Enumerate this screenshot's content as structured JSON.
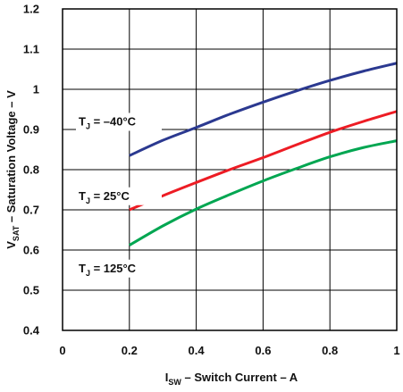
{
  "chart_data": {
    "type": "line",
    "title": "",
    "xlabel": {
      "main": "I",
      "sub": "SW",
      "rest": " – Switch Current – A"
    },
    "ylabel": {
      "main": "V",
      "sub": "SAT",
      "rest": " – Saturation Voltage – V"
    },
    "xlim": [
      0,
      1
    ],
    "ylim": [
      0.4,
      1.2
    ],
    "xticks": [
      0,
      0.2,
      0.4,
      0.6,
      0.8,
      1
    ],
    "xtick_labels": [
      "0",
      "0.2",
      "0.4",
      "0.6",
      "0.8",
      "1"
    ],
    "yticks": [
      0.4,
      0.5,
      0.6,
      0.7,
      0.8,
      0.9,
      1.0,
      1.1,
      1.2
    ],
    "ytick_labels": [
      "0.4",
      "0.5",
      "0.6",
      "0.7",
      "0.8",
      "0.9",
      "1",
      "1.1",
      "1.2"
    ],
    "grid": true,
    "series": [
      {
        "name": "TJ = –40°C",
        "color": "#2b3990",
        "x": [
          0.2,
          0.3,
          0.4,
          0.5,
          0.6,
          0.7,
          0.8,
          0.9,
          1.0
        ],
        "y": [
          0.835,
          0.873,
          0.905,
          0.938,
          0.968,
          0.996,
          1.022,
          1.045,
          1.065
        ]
      },
      {
        "name": "TJ = 25°C",
        "color": "#ed1c24",
        "x": [
          0.2,
          0.3,
          0.4,
          0.5,
          0.6,
          0.7,
          0.8,
          0.9,
          1.0
        ],
        "y": [
          0.7,
          0.735,
          0.768,
          0.8,
          0.83,
          0.862,
          0.893,
          0.92,
          0.945
        ]
      },
      {
        "name": "TJ = 125°C",
        "color": "#00a651",
        "x": [
          0.2,
          0.3,
          0.4,
          0.5,
          0.6,
          0.7,
          0.8,
          0.9,
          1.0
        ],
        "y": [
          0.612,
          0.66,
          0.702,
          0.738,
          0.772,
          0.803,
          0.832,
          0.855,
          0.872
        ]
      }
    ],
    "annotations": [
      {
        "series_index": 0,
        "prefix": "T",
        "sub": "J",
        "suffix": " = –40°C",
        "anchor_x": 0.0,
        "anchor_y": 0.92
      },
      {
        "series_index": 1,
        "prefix": "T",
        "sub": "J",
        "suffix": " = 25°C",
        "anchor_x": 0.0,
        "anchor_y": 0.735
      },
      {
        "series_index": 2,
        "prefix": "T",
        "sub": "J",
        "suffix": " = 125°C",
        "anchor_x": 0.0,
        "anchor_y": 0.555
      }
    ]
  }
}
